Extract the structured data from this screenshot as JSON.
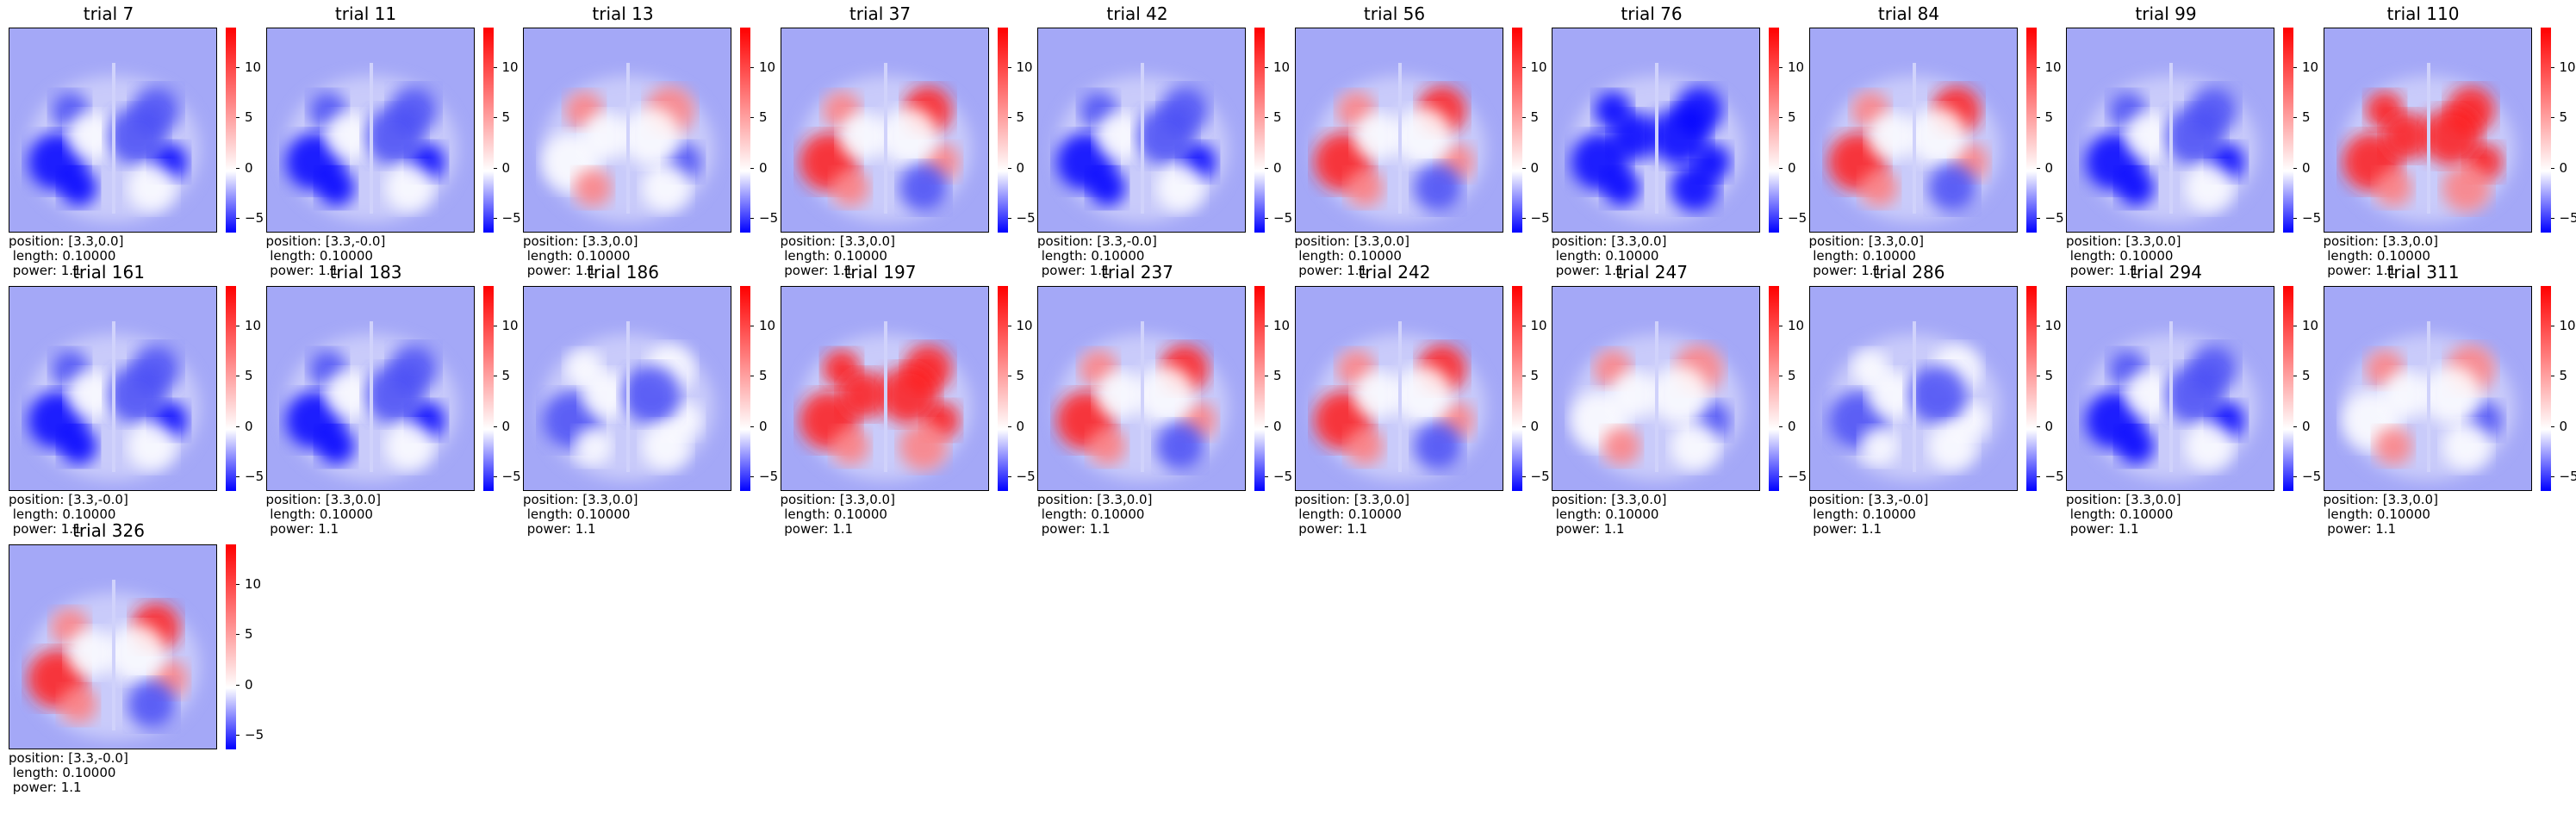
{
  "chart_data": {
    "type": "heatmap",
    "colormap": "bwr",
    "colorbar_ticks": [
      "10",
      "5",
      "0",
      "−5"
    ],
    "colorbar_range": [
      -6.5,
      14
    ],
    "panels": [
      {
        "title": "trial 7",
        "position": "position: [3.3,0.0]",
        "length": " length: 0.10000",
        "power": " power: 1.1",
        "pattern": "blue"
      },
      {
        "title": "trial 11",
        "position": "position: [3.3,-0.0]",
        "length": " length: 0.10000",
        "power": " power: 1.1",
        "pattern": "blue"
      },
      {
        "title": "trial 13",
        "position": "position: [3.3,0.0]",
        "length": " length: 0.10000",
        "power": " power: 1.1",
        "pattern": "weakred"
      },
      {
        "title": "trial 37",
        "position": "position: [3.3,0.0]",
        "length": " length: 0.10000",
        "power": " power: 1.1",
        "pattern": "red"
      },
      {
        "title": "trial 42",
        "position": "position: [3.3,-0.0]",
        "length": " length: 0.10000",
        "power": " power: 1.1",
        "pattern": "blue"
      },
      {
        "title": "trial 56",
        "position": "position: [3.3,0.0]",
        "length": " length: 0.10000",
        "power": " power: 1.1",
        "pattern": "red"
      },
      {
        "title": "trial 76",
        "position": "position: [3.3,0.0]",
        "length": " length: 0.10000",
        "power": " power: 1.1",
        "pattern": "deepblue"
      },
      {
        "title": "trial 84",
        "position": "position: [3.3,0.0]",
        "length": " length: 0.10000",
        "power": " power: 1.1",
        "pattern": "red"
      },
      {
        "title": "trial 99",
        "position": "position: [3.3,0.0]",
        "length": " length: 0.10000",
        "power": " power: 1.1",
        "pattern": "blue"
      },
      {
        "title": "trial 110",
        "position": "position: [3.3,0.0]",
        "length": " length: 0.10000",
        "power": " power: 1.1",
        "pattern": "strongred"
      },
      {
        "title": "trial 161",
        "position": "position: [3.3,-0.0]",
        "length": " length: 0.10000",
        "power": " power: 1.1",
        "pattern": "blue"
      },
      {
        "title": "trial 183",
        "position": "position: [3.3,0.0]",
        "length": " length: 0.10000",
        "power": " power: 1.1",
        "pattern": "blue"
      },
      {
        "title": "trial 186",
        "position": "position: [3.3,0.0]",
        "length": " length: 0.10000",
        "power": " power: 1.1",
        "pattern": "neutral"
      },
      {
        "title": "trial 197",
        "position": "position: [3.3,0.0]",
        "length": " length: 0.10000",
        "power": " power: 1.1",
        "pattern": "strongred"
      },
      {
        "title": "trial 237",
        "position": "position: [3.3,0.0]",
        "length": " length: 0.10000",
        "power": " power: 1.1",
        "pattern": "red"
      },
      {
        "title": "trial 242",
        "position": "position: [3.3,0.0]",
        "length": " length: 0.10000",
        "power": " power: 1.1",
        "pattern": "red"
      },
      {
        "title": "trial 247",
        "position": "position: [3.3,0.0]",
        "length": " length: 0.10000",
        "power": " power: 1.1",
        "pattern": "weakred"
      },
      {
        "title": "trial 286",
        "position": "position: [3.3,-0.0]",
        "length": " length: 0.10000",
        "power": " power: 1.1",
        "pattern": "neutral"
      },
      {
        "title": "trial 294",
        "position": "position: [3.3,0.0]",
        "length": " length: 0.10000",
        "power": " power: 1.1",
        "pattern": "blue"
      },
      {
        "title": "trial 311",
        "position": "position: [3.3,0.0]",
        "length": " length: 0.10000",
        "power": " power: 1.1",
        "pattern": "weakred"
      },
      {
        "title": "trial 326",
        "position": "position: [3.3,-0.0]",
        "length": " length: 0.10000",
        "power": " power: 1.1",
        "pattern": "red"
      }
    ]
  }
}
